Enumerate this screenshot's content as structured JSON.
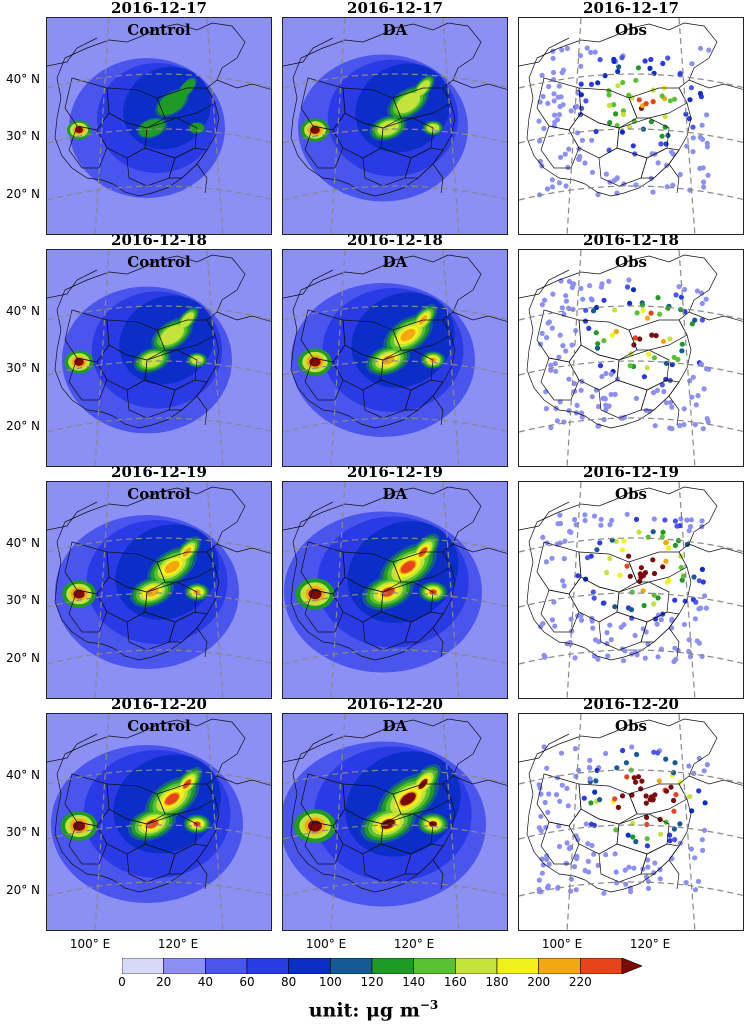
{
  "rows": [
    {
      "date": "2016-12-17",
      "level": 0.0
    },
    {
      "date": "2016-12-18",
      "level": 0.35
    },
    {
      "date": "2016-12-19",
      "level": 0.7
    },
    {
      "date": "2016-12-20",
      "level": 0.9
    }
  ],
  "columns": [
    {
      "label": "Control",
      "type": "model",
      "boost": 0.0
    },
    {
      "label": "DA",
      "type": "model",
      "boost": 0.35
    },
    {
      "label": "Obs",
      "type": "obs",
      "boost": 0.5
    }
  ],
  "lat_labels": [
    "40° N",
    "30° N",
    "20° N"
  ],
  "lon_labels": [
    "100° E",
    "120° E"
  ],
  "colorbar": {
    "ticks": [
      "0",
      "20",
      "40",
      "60",
      "80",
      "100",
      "120",
      "140",
      "160",
      "180",
      "200",
      "220"
    ],
    "colors": [
      "#d7d9fb",
      "#8c8ff4",
      "#4a55ee",
      "#2a3be6",
      "#0c2ec8",
      "#165a93",
      "#1e9b25",
      "#59c232",
      "#c4e23a",
      "#f2f21a",
      "#f5a70f",
      "#e8431b"
    ],
    "extend_color": "#7d0a0a",
    "unit_label": "unit: μg m",
    "unit_exp": "−3"
  },
  "colors": {
    "background_model": "#8c8ff4",
    "border": "#111111",
    "gridline": "#888888",
    "hotspot_max": "#7d0a0a"
  }
}
